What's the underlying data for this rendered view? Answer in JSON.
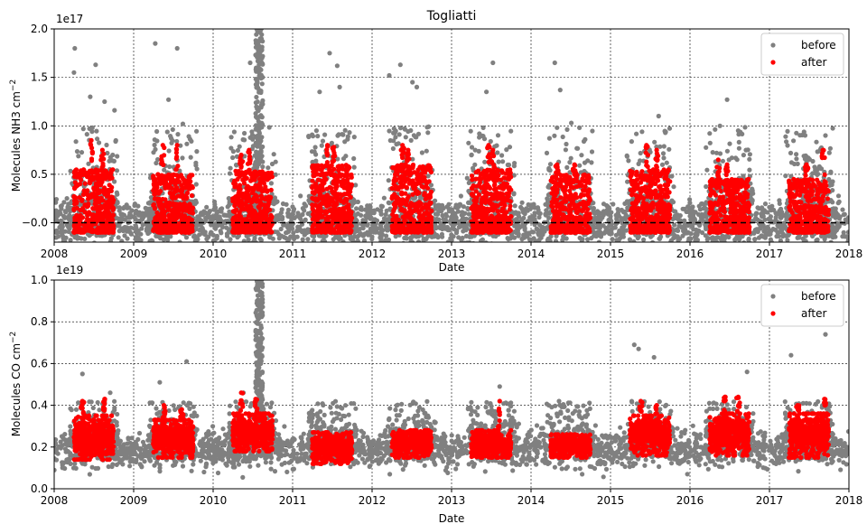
{
  "chart_data": [
    {
      "type": "scatter",
      "title": "Togliatti",
      "xlabel": "Date",
      "ylabel": "Molecules NH3 cm",
      "ylabel_sup": "−2",
      "offset_text": "1e17",
      "xlim": [
        "2008-01-01",
        "2018-01-01"
      ],
      "ylim": [
        -0.2,
        2.0
      ],
      "x_ticks": [
        "2008",
        "2009",
        "2010",
        "2011",
        "2012",
        "2013",
        "2014",
        "2015",
        "2016",
        "2017",
        "2018"
      ],
      "y_ticks": [
        "−0.0",
        "0.5",
        "1.0",
        "1.5",
        "2.0"
      ],
      "y_tick_values": [
        0.0,
        0.5,
        1.0,
        1.5,
        2.0
      ],
      "grid": true,
      "legend_position": "top-right",
      "zero_line": true,
      "colors": {
        "before": "#808080",
        "after": "#ff0000"
      },
      "series": [
        {
          "name": "before",
          "baseline_mean": 0.0,
          "baseline_spread": 0.15,
          "outliers": [
            [
              "2008-04-01",
              1.55
            ],
            [
              "2008-04-05",
              1.8
            ],
            [
              "2008-06-15",
              1.3
            ],
            [
              "2008-07-10",
              1.63
            ],
            [
              "2008-08-20",
              1.25
            ],
            [
              "2008-10-05",
              1.16
            ],
            [
              "2009-04-10",
              1.85
            ],
            [
              "2009-07-20",
              1.8
            ],
            [
              "2009-06-10",
              1.27
            ],
            [
              "2009-08-15",
              1.02
            ],
            [
              "2010-06-20",
              1.65
            ],
            [
              "2010-07-20",
              2.0
            ],
            [
              "2010-08-05",
              1.9
            ],
            [
              "2011-05-05",
              1.35
            ],
            [
              "2011-06-20",
              1.75
            ],
            [
              "2011-08-05",
              1.4
            ],
            [
              "2011-07-25",
              1.62
            ],
            [
              "2012-03-20",
              1.52
            ],
            [
              "2012-05-10",
              1.63
            ],
            [
              "2012-07-05",
              1.45
            ],
            [
              "2012-07-25",
              1.4
            ],
            [
              "2013-06-10",
              1.35
            ],
            [
              "2013-07-10",
              1.65
            ],
            [
              "2014-04-20",
              1.65
            ],
            [
              "2014-05-15",
              1.37
            ],
            [
              "2014-07-05",
              1.03
            ],
            [
              "2015-08-10",
              1.1
            ],
            [
              "2016-06-20",
              1.27
            ],
            [
              "2017-09-15",
              0.9
            ],
            [
              "2016-08-10",
              0.95
            ]
          ]
        },
        {
          "name": "after",
          "seasons": [
            {
              "start": "2008-04-01",
              "end": "2008-10-01",
              "ymax": 0.55,
              "peaks": [
                [
                  "2008-06-20",
                  0.85
                ],
                [
                  "2008-08-10",
                  0.75
                ]
              ]
            },
            {
              "start": "2009-04-01",
              "end": "2009-10-01",
              "ymax": 0.5,
              "peaks": [
                [
                  "2009-05-15",
                  0.8
                ],
                [
                  "2009-07-20",
                  0.8
                ]
              ]
            },
            {
              "start": "2010-04-01",
              "end": "2010-10-01",
              "ymax": 0.55,
              "peaks": [
                [
                  "2010-05-10",
                  0.7
                ],
                [
                  "2010-06-15",
                  0.75
                ]
              ]
            },
            {
              "start": "2011-04-01",
              "end": "2011-10-01",
              "ymax": 0.6,
              "peaks": [
                [
                  "2011-06-10",
                  0.8
                ],
                [
                  "2011-07-10",
                  0.78
                ]
              ]
            },
            {
              "start": "2012-04-01",
              "end": "2012-10-01",
              "ymax": 0.6,
              "peaks": [
                [
                  "2012-05-20",
                  0.8
                ],
                [
                  "2012-06-15",
                  0.75
                ]
              ]
            },
            {
              "start": "2013-04-01",
              "end": "2013-10-01",
              "ymax": 0.55,
              "peaks": [
                [
                  "2013-06-20",
                  0.8
                ],
                [
                  "2013-07-10",
                  0.75
                ]
              ]
            },
            {
              "start": "2014-04-01",
              "end": "2014-10-01",
              "ymax": 0.5,
              "peaks": [
                [
                  "2014-05-01",
                  0.6
                ],
                [
                  "2014-07-20",
                  0.6
                ]
              ]
            },
            {
              "start": "2015-04-01",
              "end": "2015-10-01",
              "ymax": 0.55,
              "peaks": [
                [
                  "2015-06-15",
                  0.8
                ],
                [
                  "2015-08-01",
                  0.75
                ]
              ]
            },
            {
              "start": "2016-04-01",
              "end": "2016-10-01",
              "ymax": 0.45,
              "peaks": [
                [
                  "2016-05-10",
                  0.65
                ],
                [
                  "2016-06-20",
                  0.6
                ]
              ]
            },
            {
              "start": "2017-04-01",
              "end": "2017-10-01",
              "ymax": 0.45,
              "peaks": [
                [
                  "2017-06-20",
                  0.6
                ],
                [
                  "2017-09-05",
                  0.75
                ]
              ]
            }
          ]
        }
      ]
    },
    {
      "type": "scatter",
      "title": "",
      "xlabel": "Date",
      "ylabel": "Molecules CO cm",
      "ylabel_sup": "−2",
      "offset_text": "1e19",
      "xlim": [
        "2008-01-01",
        "2018-01-01"
      ],
      "ylim": [
        0.0,
        1.0
      ],
      "x_ticks": [
        "2008",
        "2009",
        "2010",
        "2011",
        "2012",
        "2013",
        "2014",
        "2015",
        "2016",
        "2017",
        "2018"
      ],
      "y_ticks": [
        "0.0",
        "0.2",
        "0.4",
        "0.6",
        "0.8",
        "1.0"
      ],
      "y_tick_values": [
        0.0,
        0.2,
        0.4,
        0.6,
        0.8,
        1.0
      ],
      "grid": true,
      "legend_position": "top-right",
      "zero_line": false,
      "colors": {
        "before": "#808080",
        "after": "#ff0000"
      },
      "series": [
        {
          "name": "before",
          "baseline_mean": 0.19,
          "baseline_spread": 0.04,
          "outliers": [
            [
              "2008-05-10",
              0.55
            ],
            [
              "2009-05-01",
              0.51
            ],
            [
              "2009-09-01",
              0.61
            ],
            [
              "2010-07-25",
              0.98
            ],
            [
              "2010-08-01",
              0.9
            ],
            [
              "2010-08-05",
              0.75
            ],
            [
              "2013-08-10",
              0.49
            ],
            [
              "2015-04-20",
              0.69
            ],
            [
              "2015-05-10",
              0.67
            ],
            [
              "2015-07-20",
              0.63
            ],
            [
              "2016-09-20",
              0.56
            ],
            [
              "2017-04-10",
              0.64
            ],
            [
              "2017-09-15",
              0.74
            ],
            [
              "2008-09-15",
              0.46
            ],
            [
              "2010-05-20",
              0.46
            ],
            [
              "2009-11-20",
              0.08
            ],
            [
              "2015-12-20",
              0.07
            ],
            [
              "2008-04-05",
              0.12
            ]
          ]
        },
        {
          "name": "after",
          "seasons": [
            {
              "start": "2008-04-01",
              "end": "2008-10-01",
              "ymin": 0.14,
              "ymax": 0.35,
              "peaks": [
                [
                  "2008-05-10",
                  0.42
                ],
                [
                  "2008-08-20",
                  0.43
                ]
              ]
            },
            {
              "start": "2009-04-01",
              "end": "2009-10-01",
              "ymin": 0.15,
              "ymax": 0.33,
              "peaks": [
                [
                  "2009-05-20",
                  0.4
                ],
                [
                  "2009-08-10",
                  0.38
                ]
              ]
            },
            {
              "start": "2010-04-01",
              "end": "2010-10-01",
              "ymin": 0.18,
              "ymax": 0.36,
              "peaks": [
                [
                  "2010-05-10",
                  0.46
                ],
                [
                  "2010-07-15",
                  0.43
                ]
              ]
            },
            {
              "start": "2011-04-01",
              "end": "2011-10-01",
              "ymin": 0.12,
              "ymax": 0.27,
              "peaks": []
            },
            {
              "start": "2012-04-01",
              "end": "2012-10-01",
              "ymin": 0.15,
              "ymax": 0.28,
              "peaks": []
            },
            {
              "start": "2013-04-01",
              "end": "2013-10-01",
              "ymin": 0.15,
              "ymax": 0.28,
              "peaks": [
                [
                  "2013-08-10",
                  0.42
                ]
              ]
            },
            {
              "start": "2014-04-01",
              "end": "2014-10-01",
              "ymin": 0.15,
              "ymax": 0.26,
              "peaks": []
            },
            {
              "start": "2015-04-01",
              "end": "2015-10-01",
              "ymin": 0.16,
              "ymax": 0.35,
              "peaks": [
                [
                  "2015-05-20",
                  0.42
                ],
                [
                  "2015-08-01",
                  0.4
                ]
              ]
            },
            {
              "start": "2016-04-01",
              "end": "2016-10-01",
              "ymin": 0.16,
              "ymax": 0.36,
              "peaks": [
                [
                  "2016-06-10",
                  0.44
                ],
                [
                  "2016-08-10",
                  0.44
                ]
              ]
            },
            {
              "start": "2017-04-01",
              "end": "2017-10-01",
              "ymin": 0.15,
              "ymax": 0.36,
              "peaks": [
                [
                  "2017-05-10",
                  0.4
                ],
                [
                  "2017-09-10",
                  0.43
                ]
              ]
            }
          ]
        }
      ]
    }
  ]
}
